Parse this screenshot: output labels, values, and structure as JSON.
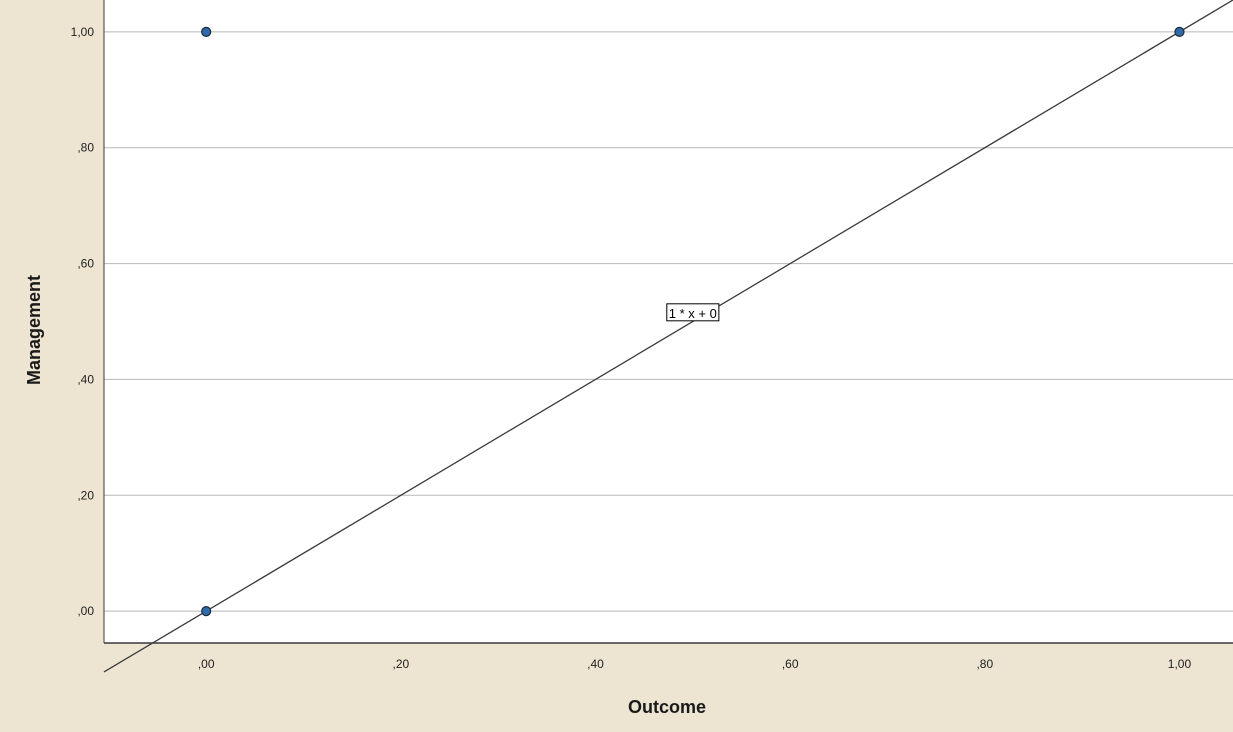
{
  "chart_data": {
    "type": "scatter",
    "title": "",
    "xlabel": "Outcome",
    "ylabel": "Management",
    "xlim": [
      -0.105,
      1.055
    ],
    "ylim": [
      -0.055,
      1.055
    ],
    "x_ticks": [
      0.0,
      0.2,
      0.4,
      0.6,
      0.8,
      1.0
    ],
    "x_tick_labels": [
      ",00",
      ",20",
      ",40",
      ",60",
      ",80",
      "1,00"
    ],
    "y_ticks": [
      0.0,
      0.2,
      0.4,
      0.6,
      0.8,
      1.0
    ],
    "y_tick_labels": [
      ",00",
      ",20",
      ",40",
      ",60",
      ",80",
      "1,00"
    ],
    "grid": "horizontal",
    "points": [
      {
        "x": 0.0,
        "y": 0.0
      },
      {
        "x": 0.0,
        "y": 1.0
      },
      {
        "x": 1.0,
        "y": 1.0
      }
    ],
    "reference_line": {
      "slope": 1,
      "intercept": 0,
      "label": "1 * x + 0",
      "label_anchor": {
        "x": 0.5,
        "y": 0.515
      }
    },
    "colors": {
      "frame_background": "#EDE5D2",
      "plot_background": "#FFFFFF",
      "gridline": "#B8B8B8",
      "point_fill": "#2E6BA8",
      "point_stroke": "#1B2B3A",
      "line": "#3A3A3A"
    }
  }
}
